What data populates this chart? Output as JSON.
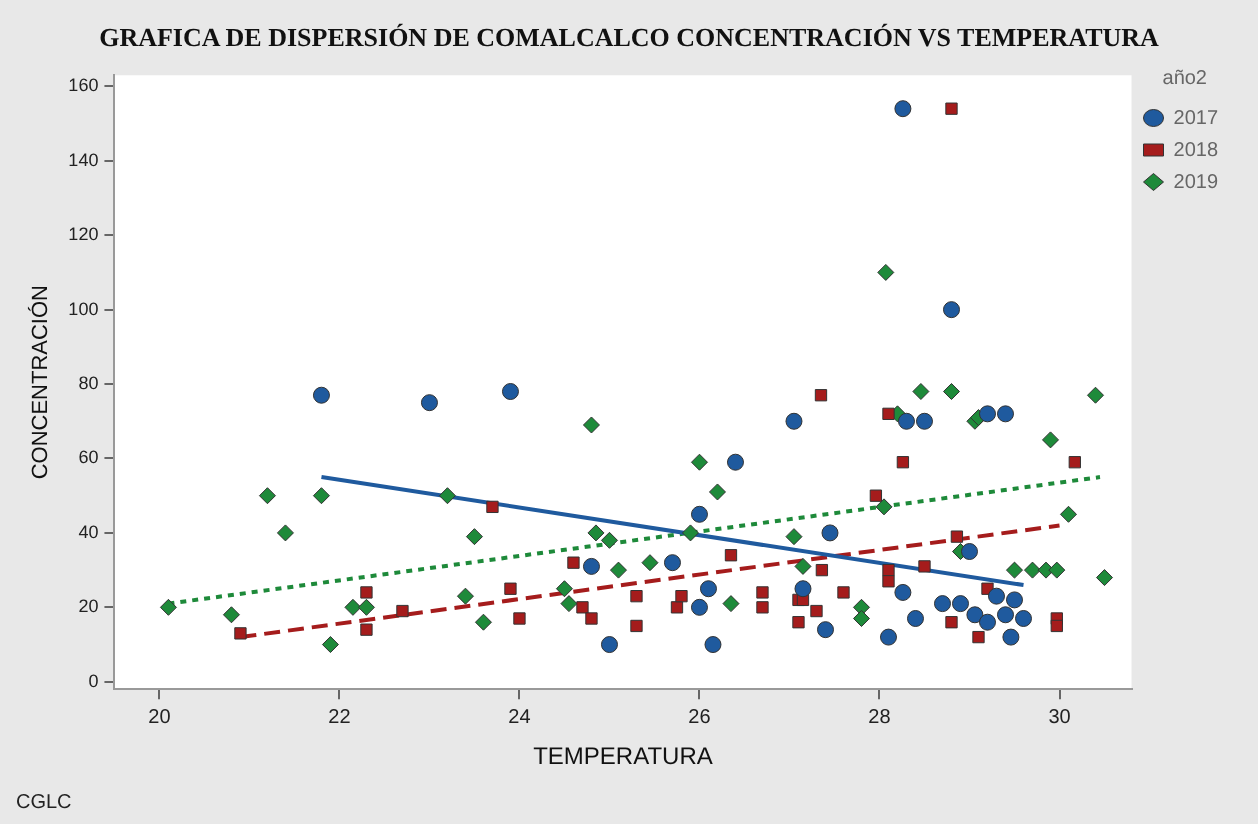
{
  "chart_data": {
    "type": "scatter",
    "title": "GRAFICA DE DISPERSIÓN DE COMALCALCO CONCENTRACIÓN VS TEMPERATURA",
    "xlabel": "TEMPERATURA",
    "ylabel": "CONCENTRACIÓN",
    "legend_title": "año2",
    "annotations": [
      "CGLC"
    ],
    "xlim": [
      19.5,
      30.8
    ],
    "xticks": [
      20,
      22,
      24,
      26,
      28,
      30
    ],
    "ylim": [
      -2,
      163
    ],
    "yticks": [
      0,
      20,
      40,
      60,
      80,
      100,
      120,
      140,
      160
    ],
    "grid": false,
    "legend": "top right",
    "series": [
      {
        "name": "2017",
        "marker": "circle",
        "color": "#1f5a9e",
        "x": [
          21.8,
          23.0,
          23.9,
          27.05,
          26.4,
          26.0,
          25.7,
          25.0,
          26.15,
          26.1,
          26.0,
          24.8,
          28.26,
          28.8,
          28.3,
          28.5,
          29.2,
          29.4,
          27.45,
          29.0,
          27.15,
          28.26,
          28.7,
          28.9,
          28.4,
          28.1,
          27.4,
          29.06,
          29.2,
          29.4,
          29.5,
          29.6,
          29.46,
          29.3
        ],
        "values": [
          77,
          75,
          78,
          70,
          59,
          45,
          32,
          10,
          10,
          25,
          20,
          31,
          154,
          100,
          70,
          70,
          72,
          72,
          40,
          35,
          25,
          24,
          21,
          21,
          17,
          12,
          14,
          18,
          16,
          18,
          22,
          17,
          12,
          23
        ]
      },
      {
        "name": "2018",
        "marker": "square",
        "color": "#a51c1c",
        "x": [
          20.9,
          22.3,
          22.3,
          22.7,
          23.7,
          23.9,
          24.0,
          24.6,
          24.7,
          24.8,
          25.3,
          25.3,
          25.75,
          26.35,
          26.7,
          26.7,
          27.1,
          27.1,
          25.8,
          28.8,
          27.35,
          28.1,
          28.26,
          30.17,
          27.96,
          28.86,
          27.36,
          28.1,
          28.1,
          28.5,
          27.6,
          29.2,
          28.8,
          29.1,
          29.97,
          29.97,
          27.3,
          27.15
        ],
        "values": [
          13,
          24,
          14,
          19,
          47,
          25,
          17,
          32,
          20,
          17,
          23,
          15,
          20,
          34,
          24,
          20,
          22,
          16,
          23,
          154,
          77,
          72,
          59,
          59,
          50,
          39,
          30,
          30,
          27,
          31,
          24,
          25,
          16,
          12,
          17,
          15,
          19,
          22
        ]
      },
      {
        "name": "2019",
        "marker": "diamond",
        "color": "#1e8a3a",
        "x": [
          20.1,
          21.2,
          21.4,
          21.8,
          20.8,
          21.9,
          22.15,
          22.3,
          23.2,
          23.5,
          23.4,
          23.6,
          24.8,
          26.0,
          26.2,
          24.85,
          25.0,
          25.1,
          25.45,
          24.5,
          24.55,
          25.9,
          26.35,
          27.05,
          27.15,
          28.07,
          28.46,
          28.8,
          30.4,
          28.2,
          29.06,
          29.1,
          29.9,
          30.1,
          28.05,
          28.9,
          29.5,
          29.7,
          29.85,
          29.97,
          30.5,
          27.8,
          27.8
        ],
        "values": [
          20,
          50,
          40,
          50,
          18,
          10,
          20,
          20,
          50,
          39,
          23,
          16,
          69,
          59,
          51,
          40,
          38,
          30,
          32,
          25,
          21,
          40,
          21,
          39,
          31,
          110,
          78,
          78,
          77,
          72,
          70,
          71,
          65,
          45,
          47,
          35,
          30,
          30,
          30,
          30,
          28,
          20,
          17
        ]
      },
      {
        "type": "line",
        "marker": "none",
        "line_style": "solid",
        "color": "#1f5a9e",
        "x": [
          21.8,
          29.6
        ],
        "values": [
          55,
          26
        ]
      },
      {
        "type": "line",
        "marker": "none",
        "line_style": "dashed",
        "color": "#a51c1c",
        "x": [
          20.9,
          30
        ],
        "values": [
          12,
          42
        ]
      },
      {
        "type": "line",
        "marker": "none",
        "line_style": "dotted",
        "color": "#1e8a3a",
        "x": [
          20.1,
          30.45
        ],
        "values": [
          21,
          55
        ]
      }
    ]
  }
}
